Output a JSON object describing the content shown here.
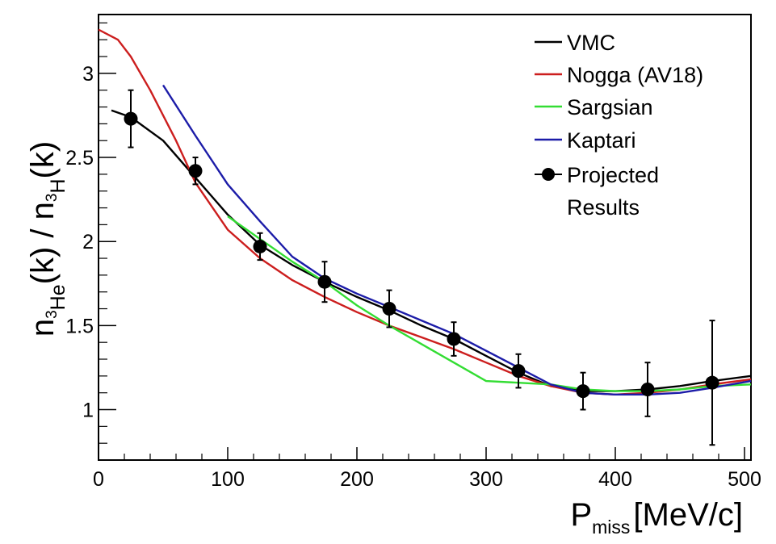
{
  "chart_data": {
    "type": "line",
    "x_axis": {
      "label": "P",
      "label_subscript": "miss",
      "label_unit": "[MeV/c]",
      "range": [
        0,
        505
      ],
      "tick_values": [
        0,
        100,
        200,
        300,
        400,
        500
      ],
      "tick_labels": [
        "0",
        "100",
        "200",
        "300",
        "400",
        "500"
      ]
    },
    "y_axis": {
      "label_parts": [
        "n",
        "3",
        "He",
        "(k) / n",
        "3",
        "H",
        "(k)"
      ],
      "range": [
        0.7,
        3.35
      ],
      "tick_values": [
        1,
        1.5,
        2,
        2.5,
        3
      ],
      "tick_labels": [
        "1",
        "1.5",
        "2",
        "2.5",
        "3"
      ]
    },
    "grid": false,
    "legend_position": "top-right",
    "series": [
      {
        "name": "VMC",
        "color": "#000000",
        "x": [
          10,
          25,
          50,
          75,
          100,
          125,
          150,
          175,
          200,
          225,
          250,
          275,
          300,
          325,
          350,
          375,
          400,
          425,
          450,
          475,
          505
        ],
        "y": [
          2.78,
          2.74,
          2.6,
          2.38,
          2.16,
          1.98,
          1.86,
          1.76,
          1.67,
          1.59,
          1.5,
          1.42,
          1.32,
          1.22,
          1.14,
          1.11,
          1.11,
          1.12,
          1.14,
          1.17,
          1.2
        ]
      },
      {
        "name": "Nogga (AV18)",
        "color": "#cc1e1e",
        "x": [
          0,
          15,
          25,
          40,
          60,
          75,
          100,
          125,
          150,
          175,
          200,
          225,
          250,
          275,
          300,
          325,
          350,
          375,
          400,
          425,
          450,
          475,
          505
        ],
        "y": [
          3.26,
          3.2,
          3.1,
          2.9,
          2.6,
          2.35,
          2.07,
          1.9,
          1.77,
          1.67,
          1.58,
          1.5,
          1.43,
          1.36,
          1.28,
          1.2,
          1.14,
          1.1,
          1.09,
          1.1,
          1.12,
          1.15,
          1.18
        ]
      },
      {
        "name": "Sargsian",
        "color": "#33dd33",
        "x": [
          100,
          150,
          175,
          200,
          225,
          250,
          275,
          300,
          325,
          350,
          375,
          400,
          425,
          450,
          475,
          505
        ],
        "y": [
          2.15,
          1.88,
          1.76,
          1.62,
          1.5,
          1.39,
          1.28,
          1.17,
          1.16,
          1.15,
          1.12,
          1.11,
          1.11,
          1.12,
          1.14,
          1.15
        ]
      },
      {
        "name": "Kaptari",
        "color": "#1c1ca8",
        "x": [
          50,
          75,
          100,
          125,
          150,
          175,
          200,
          225,
          250,
          275,
          300,
          325,
          350,
          375,
          400,
          425,
          450,
          475,
          505
        ],
        "y": [
          2.93,
          2.63,
          2.34,
          2.12,
          1.91,
          1.78,
          1.69,
          1.61,
          1.53,
          1.45,
          1.35,
          1.25,
          1.15,
          1.1,
          1.09,
          1.09,
          1.1,
          1.13,
          1.17
        ]
      }
    ],
    "points": {
      "name": "Projected Results",
      "name_lines": [
        "Projected",
        "Results"
      ],
      "color": "#000000",
      "x": [
        25,
        75,
        125,
        175,
        225,
        275,
        325,
        375,
        425,
        475
      ],
      "y": [
        2.73,
        2.42,
        1.97,
        1.76,
        1.6,
        1.42,
        1.23,
        1.11,
        1.12,
        1.16
      ],
      "err": [
        0.17,
        0.08,
        0.08,
        0.12,
        0.11,
        0.1,
        0.1,
        0.11,
        0.16,
        0.37
      ]
    }
  }
}
